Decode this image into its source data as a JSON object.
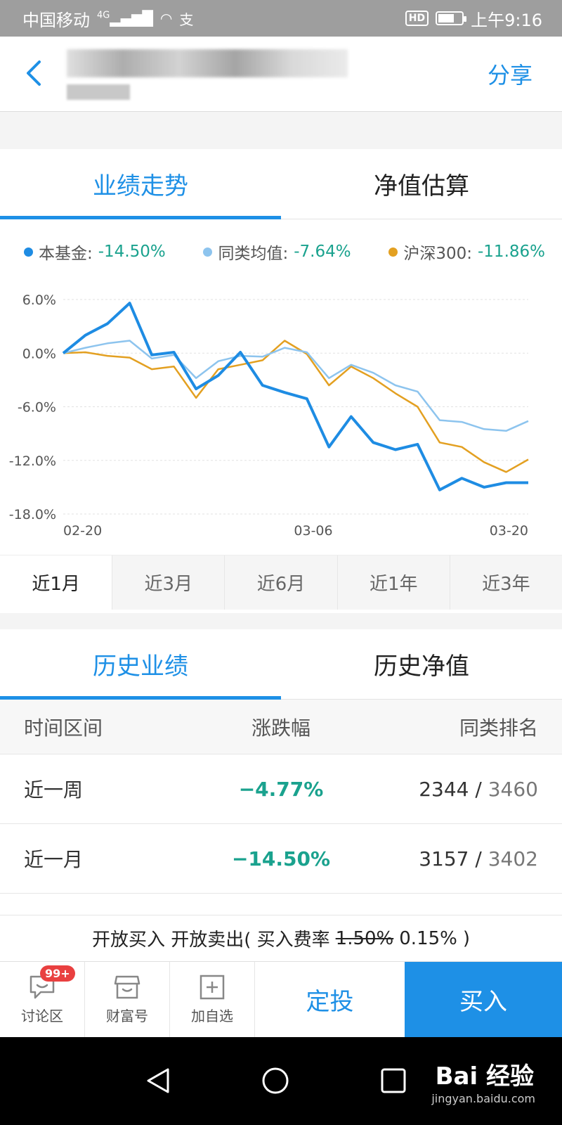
{
  "status_bar": {
    "carrier": "中国移动",
    "network": "4G",
    "time": "上午9:16",
    "hd": "HD"
  },
  "header": {
    "share_label": "分享"
  },
  "perf_tabs": [
    "业绩走势",
    "净值估算"
  ],
  "legend": [
    {
      "name": "本基金:",
      "value": "-14.50%",
      "color": "#1e8ce3"
    },
    {
      "name": "同类均值:",
      "value": "-7.64%",
      "color": "#8dc4ee"
    },
    {
      "name": "沪深300:",
      "value": "-11.86%",
      "color": "#e3a021"
    }
  ],
  "chart_data": {
    "type": "line",
    "y_ticks": [
      "6.0%",
      "0.0%",
      "-6.0%",
      "-12.0%",
      "-18.0%"
    ],
    "ylim": [
      -18,
      6
    ],
    "x_ticks": [
      "02-20",
      "03-06",
      "03-20"
    ],
    "series": [
      {
        "name": "本基金",
        "color": "#1e8ce3",
        "width": 4,
        "values": [
          0,
          2,
          3.3,
          5.6,
          -0.2,
          0.1,
          -4,
          -2.5,
          0.1,
          -3.6,
          -4.4,
          -5.1,
          -10.5,
          -7.1,
          -10,
          -10.8,
          -10.2,
          -15.3,
          -14,
          -15,
          -14.5,
          -14.5
        ]
      },
      {
        "name": "同类均值",
        "color": "#8dc4ee",
        "width": 2.5,
        "values": [
          0,
          0.6,
          1.1,
          1.4,
          -0.6,
          -0.2,
          -2.8,
          -0.9,
          -0.3,
          -0.4,
          0.6,
          0.1,
          -2.8,
          -1.3,
          -2.2,
          -3.6,
          -4.3,
          -7.5,
          -7.7,
          -8.5,
          -8.7,
          -7.6
        ]
      },
      {
        "name": "沪深300",
        "color": "#e3a021",
        "width": 2.5,
        "values": [
          0,
          0.1,
          -0.3,
          -0.5,
          -1.8,
          -1.5,
          -5,
          -1.8,
          -1.3,
          -0.8,
          1.4,
          -0.1,
          -3.6,
          -1.5,
          -2.8,
          -4.5,
          -6,
          -10,
          -10.5,
          -12.2,
          -13.3,
          -11.9
        ]
      }
    ]
  },
  "period_tabs": [
    "近1月",
    "近3月",
    "近6月",
    "近1年",
    "近3年"
  ],
  "history_tabs": [
    "历史业绩",
    "历史净值"
  ],
  "table": {
    "headers": [
      "时间区间",
      "涨跌幅",
      "同类排名"
    ],
    "rows": [
      {
        "period": "近一周",
        "change": "−4.77%",
        "rank": "2344",
        "total": "3460"
      },
      {
        "period": "近一月",
        "change": "−14.50%",
        "rank": "3157",
        "total": "3402"
      }
    ]
  },
  "fee": {
    "prefix": "开放买入 开放卖出( 买入费率",
    "old_rate": "1.50%",
    "new_rate": "0.15%",
    "suffix": ")"
  },
  "bottom_bar": {
    "discuss": "讨论区",
    "badge": "99+",
    "wealth": "财富号",
    "watchlist": "加自选",
    "plan": "定投",
    "buy": "买入"
  },
  "watermark": {
    "main": "Bai 经验",
    "sub": "jingyan.baidu.com"
  }
}
